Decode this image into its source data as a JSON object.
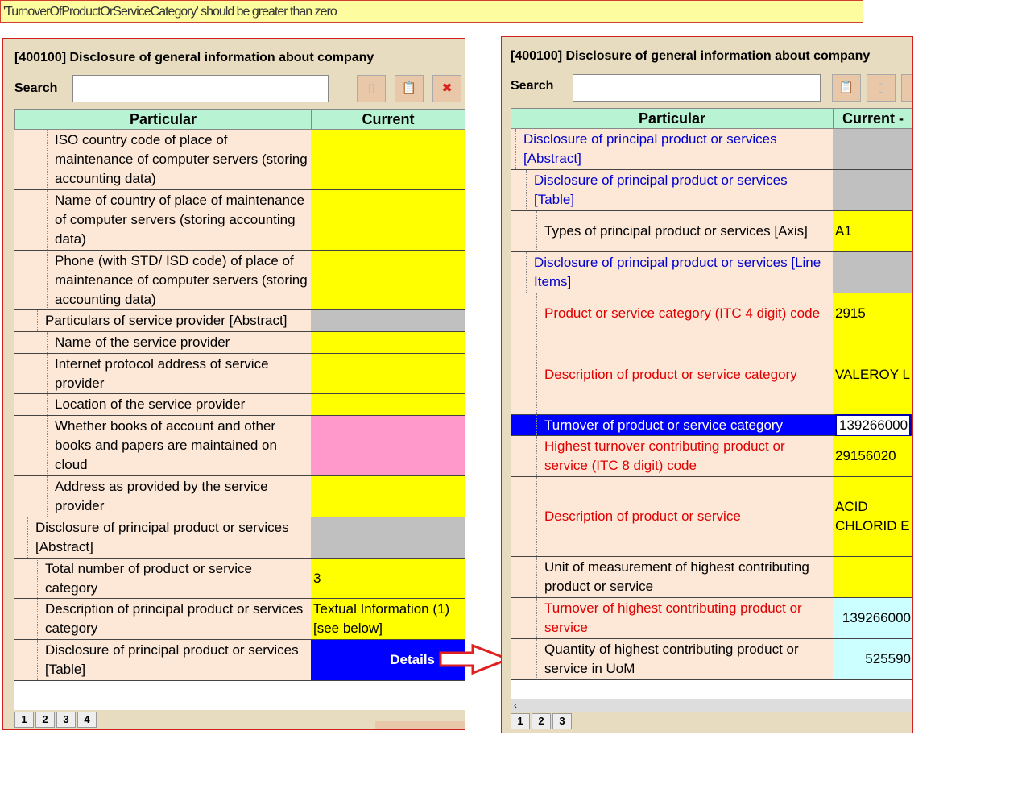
{
  "error_message": "'TurnoverOfProductOrServiceCategory' should be greater than zero",
  "left": {
    "title": "[400100] Disclosure of general information about company",
    "search_label": "Search",
    "search_value": "",
    "buttons": [
      "copy-icon",
      "paste-icon",
      "delete-icon"
    ],
    "col_particular": "Particular",
    "col_current": "Current",
    "rows": [
      {
        "label": "ISO country code of place of maintenance of computer servers (storing accounting data)",
        "value": "",
        "style": "yellow"
      },
      {
        "label": "Name of country of place of maintenance of computer servers (storing accounting data)",
        "value": "",
        "style": "yellow"
      },
      {
        "label": "Phone (with STD/ ISD code) of place of maintenance of computer servers (storing accounting data)",
        "value": "",
        "style": "yellow"
      },
      {
        "label": "Particulars of service provider [Abstract]",
        "value": "",
        "style": "gray",
        "abstract": true
      },
      {
        "label": "Name of the service provider",
        "value": "",
        "style": "yellow"
      },
      {
        "label": "Internet protocol address of service provider",
        "value": "",
        "style": "yellow"
      },
      {
        "label": "Location of the service provider",
        "value": "",
        "style": "yellow"
      },
      {
        "label": "Whether books of account and other books and papers are maintained on cloud",
        "value": "",
        "style": "pink"
      },
      {
        "label": "Address as provided by the service provider",
        "value": "",
        "style": "yellow"
      },
      {
        "label": "Disclosure of principal product or services [Abstract]",
        "value": "",
        "style": "gray",
        "abstract": true
      },
      {
        "label": "Total number of product or service category",
        "value": "3",
        "style": "yellow"
      },
      {
        "label": "Description of principal product or services category",
        "value": "Textual Information (1) [see below]",
        "style": "yellow"
      },
      {
        "label": "Disclosure of principal product or services [Table]",
        "value": "Details",
        "style": "details"
      }
    ],
    "pages": [
      "1",
      "2",
      "3",
      "4"
    ]
  },
  "right": {
    "title": "[400100] Disclosure of general information about company",
    "search_label": "Search",
    "search_value": "",
    "buttons": [
      "paste-icon",
      "copy-icon"
    ],
    "col_particular": "Particular",
    "col_current": "Current -",
    "rows": [
      {
        "label": "Disclosure of principal product or services [Abstract]",
        "value": "",
        "style": "gray",
        "color": "blue"
      },
      {
        "label": "Disclosure of principal product or services [Table]",
        "value": "",
        "style": "gray",
        "color": "blue"
      },
      {
        "label": "Types of principal product or services [Axis]",
        "value": "A1",
        "style": "yellow"
      },
      {
        "label": "Disclosure of principal product or services [Line Items]",
        "value": "",
        "style": "gray",
        "color": "blue"
      },
      {
        "label": "Product or service category (ITC 4 digit) code",
        "value": "2915",
        "style": "yellow",
        "color": "red"
      },
      {
        "label": "Description of product or service category",
        "value": "VALEROY L",
        "style": "yellow",
        "color": "red"
      },
      {
        "label": "Turnover of product or service category",
        "value": "139266000",
        "style": "selected",
        "color": "red"
      },
      {
        "label": "Highest turnover contributing product or service (ITC 8 digit) code",
        "value": "29156020",
        "style": "yellow",
        "color": "red"
      },
      {
        "label": "Description of product or service",
        "value": "ACID CHLORID E",
        "style": "yellow",
        "color": "red"
      },
      {
        "label": "Unit of measurement of highest contributing product or service",
        "value": "",
        "style": "yellow"
      },
      {
        "label": "Turnover of highest contributing product or service",
        "value": "139266000",
        "style": "cyan",
        "color": "red"
      },
      {
        "label": "Quantity of highest contributing product or service in UoM",
        "value": "525590",
        "style": "cyan"
      }
    ],
    "pages": [
      "1",
      "2",
      "3"
    ]
  },
  "colors": {
    "yellow": "#ffff00",
    "gray": "#c0c0c0",
    "pink": "#ff99cc",
    "details": "#0000ff",
    "cyan": "#ccffff",
    "selected": "#0000ff"
  }
}
